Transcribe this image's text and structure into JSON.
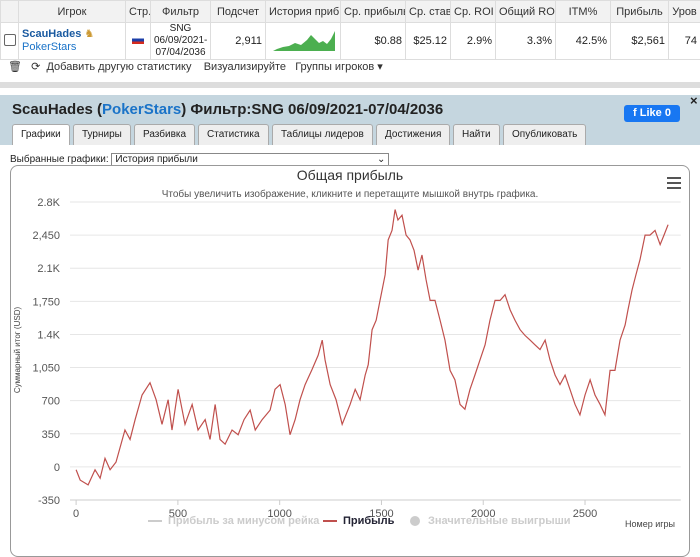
{
  "table": {
    "headers": [
      "Игрок",
      "Стр.",
      "Фильтр",
      "Подсчет",
      "История прибыл",
      "Ср. прибыль",
      "Ср. ставк",
      "Ср. ROI",
      "Общий ROI",
      "ITM%",
      "Прибыль",
      "Уров"
    ],
    "row": {
      "player": "ScauHades",
      "site": "PokerStars",
      "filter": "SNG 06/09/2021-07/04/2036",
      "count": "2,911",
      "cells": [
        "$0.88",
        "$25.12",
        "2.9%",
        "3.3%",
        "42.5%",
        "$2,561",
        "74"
      ]
    }
  },
  "toolbar": {
    "add_stats": "Добавить другую статистику",
    "visualize": "Визуализируйте",
    "groups": "Группы игроков"
  },
  "panel": {
    "title_parts": [
      "ScauHades (",
      "PokerStars",
      ") Фильтр:SNG 06/09/2021-07/04/2036"
    ],
    "like": "Like",
    "like_count": "0",
    "close": "×",
    "tabs": [
      "Графики",
      "Турниры",
      "Разбивка",
      "Статистика",
      "Таблицы лидеров",
      "Достижения",
      "Найти",
      "Опубликовать"
    ],
    "selector_label": "Выбранные графики:",
    "selector_value": "История прибыли"
  },
  "chart_data": {
    "type": "line",
    "title": "Общая прибыль",
    "subtitle": "Чтобы увеличить изображение, кликните и перетащите мышкой внутрь графика.",
    "x_label": "Номер игры",
    "y_label": "Суммарный итог (USD)",
    "xlim": [
      -30,
      2970
    ],
    "xticks": [
      0,
      500,
      1000,
      1500,
      2000,
      2500
    ],
    "ylim": [
      -350,
      2800
    ],
    "yticks": [
      -350,
      0,
      350,
      700,
      {
        "value": 1050,
        "label": "1,050"
      },
      {
        "value": 1400,
        "label": "1.4K"
      },
      {
        "value": 1750,
        "label": "1,750"
      },
      {
        "value": 2100,
        "label": "2.1K"
      },
      {
        "value": 2450,
        "label": "2,450"
      },
      {
        "value": 2800,
        "label": "2.8K"
      }
    ],
    "grid": true,
    "x": [
      0,
      20,
      59,
      93,
      118,
      142,
      167,
      196,
      240,
      265,
      290,
      324,
      363,
      393,
      422,
      452,
      471,
      501,
      535,
      570,
      599,
      634,
      658,
      683,
      707,
      732,
      766,
      796,
      825,
      855,
      880,
      914,
      953,
      977,
      1002,
      1027,
      1051,
      1076,
      1100,
      1125,
      1159,
      1189,
      1209,
      1223,
      1248,
      1277,
      1307,
      1346,
      1371,
      1395,
      1420,
      1435,
      1454,
      1474,
      1493,
      1518,
      1533,
      1552,
      1567,
      1581,
      1601,
      1621,
      1640,
      1660,
      1680,
      1699,
      1719,
      1739,
      1763,
      1788,
      1812,
      1837,
      1861,
      1886,
      1910,
      1935,
      1959,
      1984,
      2009,
      2033,
      2058,
      2083,
      2107,
      2132,
      2156,
      2181,
      2205,
      2230,
      2254,
      2279,
      2304,
      2328,
      2353,
      2377,
      2402,
      2426,
      2451,
      2475,
      2500,
      2525,
      2549,
      2574,
      2598,
      2623,
      2647,
      2672,
      2697,
      2711,
      2731,
      2750,
      2770,
      2795,
      2819,
      2844,
      2869,
      2888,
      2908
    ],
    "series": [
      {
        "name": "Прибыль за минусом рейка",
        "color": "#cccccc",
        "visible": false
      },
      {
        "name": "Прибыль",
        "color": "#c0504d",
        "visible": true,
        "values": [
          -30,
          -140,
          -190,
          -30,
          -120,
          90,
          -30,
          50,
          390,
          290,
          500,
          760,
          890,
          710,
          450,
          710,
          390,
          820,
          450,
          660,
          390,
          500,
          290,
          660,
          290,
          240,
          390,
          340,
          500,
          600,
          390,
          500,
          600,
          820,
          870,
          660,
          340,
          500,
          710,
          870,
          1030,
          1180,
          1340,
          1130,
          870,
          710,
          450,
          660,
          820,
          710,
          970,
          1080,
          1450,
          1550,
          1760,
          2030,
          2400,
          2500,
          2720,
          2610,
          2660,
          2450,
          2400,
          2290,
          2080,
          2240,
          1980,
          1760,
          1760,
          1550,
          1340,
          1020,
          920,
          660,
          610,
          820,
          970,
          1130,
          1290,
          1550,
          1760,
          1760,
          1820,
          1660,
          1550,
          1450,
          1390,
          1340,
          1290,
          1240,
          1340,
          1130,
          970,
          870,
          970,
          820,
          660,
          550,
          760,
          920,
          760,
          660,
          550,
          1020,
          1020,
          1340,
          1500,
          1660,
          1870,
          2030,
          2190,
          2450,
          2450,
          2500,
          2350,
          2450,
          2560
        ]
      },
      {
        "name": "Значительные выигрыши",
        "color": "#cccccc",
        "visible": false
      }
    ]
  }
}
